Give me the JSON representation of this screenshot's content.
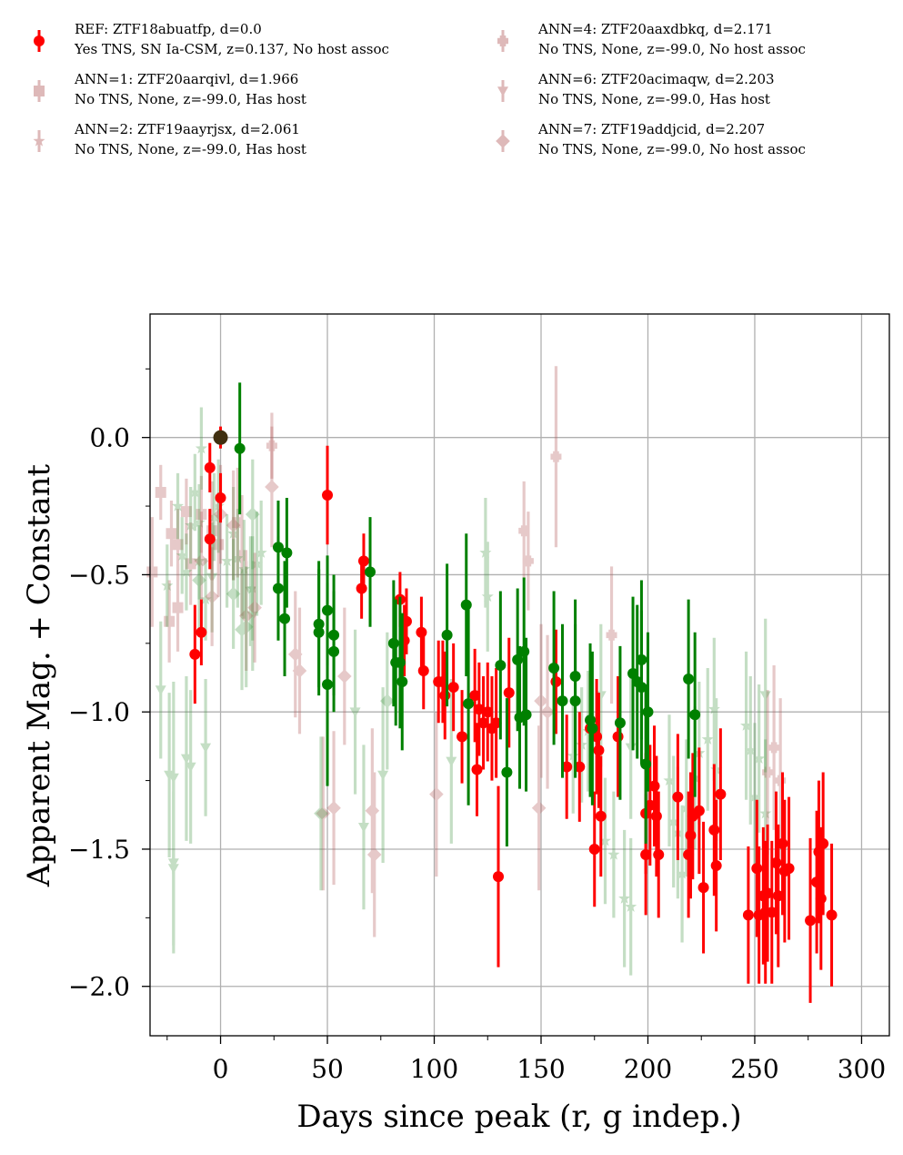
{
  "colors": {
    "r_ref": "#ff0000",
    "g_ref": "#008000",
    "r_ann": "#b35a5a",
    "g_ann": "#4a9a4a",
    "grid": "#b0b0b0",
    "peak": "#403010"
  },
  "legend": [
    {
      "marker": "circle",
      "line1": "REF: ZTF18abuatfp, d=0.0",
      "line2": "Yes TNS, SN Ia-CSM, z=0.137, No host assoc"
    },
    {
      "marker": "square",
      "line1": "ANN=1: ZTF20aarqivl, d=1.966",
      "line2": "No TNS, None, z=-99.0, Has host"
    },
    {
      "marker": "star",
      "line1": "ANN=2: ZTF19aayrjsx, d=2.061",
      "line2": "No TNS, None, z=-99.0, Has host"
    },
    {
      "marker": "plus",
      "line1": "ANN=4: ZTF20aaxdbkq, d=2.171",
      "line2": "No TNS, None, z=-99.0, No host assoc"
    },
    {
      "marker": "triangle",
      "line1": "ANN=6: ZTF20acimaqw, d=2.203",
      "line2": "No TNS, None, z=-99.0, Has host"
    },
    {
      "marker": "diamond",
      "line1": "ANN=7: ZTF19addjcid, d=2.207",
      "line2": "No TNS, None, z=-99.0, No host assoc"
    }
  ],
  "chart_data": {
    "type": "scatter",
    "xlabel": "Days since peak (r, g indep.)",
    "ylabel": "Apparent Mag. + Constant",
    "xlim": [
      -33,
      313
    ],
    "ylim": [
      -2.18,
      0.45
    ],
    "xticks": [
      0,
      50,
      100,
      150,
      200,
      250,
      300
    ],
    "xtick_labels": [
      "0",
      "50",
      "100",
      "150",
      "200",
      "250",
      "300"
    ],
    "yticks": [
      0.0,
      -0.5,
      -1.0,
      -1.5,
      -2.0
    ],
    "ytick_labels": [
      "0.0",
      "−0.5",
      "−1.0",
      "−1.5",
      "−2.0"
    ],
    "grid": true,
    "legend_position": "above plot, two columns",
    "series": [
      {
        "name": "REF r",
        "marker": "circle",
        "band": "r",
        "reference": true,
        "points": [
          [
            0,
            0.0,
            0.04
          ],
          [
            0,
            -0.22,
            0.09
          ],
          [
            -5,
            -0.11,
            0.09
          ],
          [
            -5,
            -0.37,
            0.11
          ],
          [
            -9,
            -0.71,
            0.12
          ],
          [
            -12,
            -0.79,
            0.18
          ],
          [
            50,
            -0.21,
            0.18
          ],
          [
            67,
            -0.45,
            0.1
          ],
          [
            66,
            -0.55,
            0.11
          ],
          [
            84,
            -0.59,
            0.1
          ],
          [
            87,
            -0.67,
            0.12
          ],
          [
            86,
            -0.74,
            0.13
          ],
          [
            94,
            -0.71,
            0.13
          ],
          [
            95,
            -0.85,
            0.14
          ],
          [
            102,
            -0.89,
            0.15
          ],
          [
            104,
            -0.89,
            0.15
          ],
          [
            105,
            -0.94,
            0.16
          ],
          [
            109,
            -0.91,
            0.16
          ],
          [
            113,
            -1.09,
            0.17
          ],
          [
            119,
            -0.94,
            0.17
          ],
          [
            121,
            -0.99,
            0.17
          ],
          [
            123,
            -1.04,
            0.17
          ],
          [
            125,
            -1.0,
            0.18
          ],
          [
            127,
            -1.06,
            0.19
          ],
          [
            129,
            -1.04,
            0.2
          ],
          [
            130,
            -1.6,
            0.33
          ],
          [
            120,
            -1.21,
            0.17
          ],
          [
            135,
            -0.93,
            0.2
          ],
          [
            157,
            -0.89,
            0.19
          ],
          [
            162,
            -1.2,
            0.19
          ],
          [
            168,
            -1.2,
            0.2
          ],
          [
            173,
            -1.06,
            0.2
          ],
          [
            175,
            -1.5,
            0.21
          ],
          [
            176,
            -1.09,
            0.21
          ],
          [
            177,
            -1.14,
            0.21
          ],
          [
            178,
            -1.38,
            0.22
          ],
          [
            186,
            -1.09,
            0.22
          ],
          [
            199,
            -1.37,
            0.22
          ],
          [
            199,
            -1.52,
            0.22
          ],
          [
            201,
            -1.34,
            0.22
          ],
          [
            203,
            -1.27,
            0.22
          ],
          [
            204,
            -1.38,
            0.22
          ],
          [
            205,
            -1.52,
            0.23
          ],
          [
            214,
            -1.31,
            0.23
          ],
          [
            219,
            -1.52,
            0.23
          ],
          [
            220,
            -1.45,
            0.23
          ],
          [
            221,
            -1.38,
            0.23
          ],
          [
            224,
            -1.36,
            0.23
          ],
          [
            226,
            -1.64,
            0.24
          ],
          [
            231,
            -1.43,
            0.24
          ],
          [
            232,
            -1.56,
            0.24
          ],
          [
            234,
            -1.3,
            0.24
          ],
          [
            247,
            -1.74,
            0.25
          ],
          [
            251,
            -1.57,
            0.25
          ],
          [
            252,
            -1.74,
            0.25
          ],
          [
            254,
            -1.67,
            0.25
          ],
          [
            255,
            -1.73,
            0.26
          ],
          [
            256,
            -1.66,
            0.25
          ],
          [
            258,
            -1.73,
            0.26
          ],
          [
            260,
            -1.55,
            0.26
          ],
          [
            261,
            -1.67,
            0.26
          ],
          [
            263,
            -1.48,
            0.26
          ],
          [
            264,
            -1.58,
            0.26
          ],
          [
            266,
            -1.57,
            0.26
          ],
          [
            276,
            -1.76,
            0.3
          ],
          [
            279,
            -1.62,
            0.26
          ],
          [
            280,
            -1.51,
            0.26
          ],
          [
            281,
            -1.68,
            0.26
          ],
          [
            282,
            -1.48,
            0.26
          ],
          [
            286,
            -1.74,
            0.26
          ]
        ]
      },
      {
        "name": "REF g",
        "marker": "circle",
        "band": "g",
        "reference": true,
        "points": [
          [
            9,
            -0.04,
            0.24
          ],
          [
            27,
            -0.4,
            0.17
          ],
          [
            27,
            -0.55,
            0.19
          ],
          [
            30,
            -0.66,
            0.21
          ],
          [
            31,
            -0.42,
            0.2
          ],
          [
            46,
            -0.68,
            0.23
          ],
          [
            46,
            -0.71,
            0.23
          ],
          [
            50,
            -0.63,
            0.2
          ],
          [
            50,
            -0.9,
            0.37
          ],
          [
            53,
            -0.72,
            0.22
          ],
          [
            53,
            -0.78,
            0.22
          ],
          [
            70,
            -0.49,
            0.2
          ],
          [
            81,
            -0.75,
            0.23
          ],
          [
            82,
            -0.82,
            0.23
          ],
          [
            84,
            -0.82,
            0.24
          ],
          [
            85,
            -0.89,
            0.25
          ],
          [
            106,
            -0.72,
            0.26
          ],
          [
            115,
            -0.61,
            0.26
          ],
          [
            116,
            -0.97,
            0.37
          ],
          [
            131,
            -0.83,
            0.27
          ],
          [
            134,
            -1.22,
            0.27
          ],
          [
            139,
            -0.81,
            0.26
          ],
          [
            140,
            -1.02,
            0.26
          ],
          [
            142,
            -0.78,
            0.27
          ],
          [
            143,
            -1.01,
            0.28
          ],
          [
            156,
            -0.84,
            0.28
          ],
          [
            160,
            -0.96,
            0.28
          ],
          [
            166,
            -0.87,
            0.28
          ],
          [
            166,
            -0.96,
            0.28
          ],
          [
            173,
            -1.03,
            0.28
          ],
          [
            174,
            -1.06,
            0.28
          ],
          [
            187,
            -1.04,
            0.28
          ],
          [
            193,
            -0.86,
            0.28
          ],
          [
            195,
            -0.89,
            0.28
          ],
          [
            197,
            -0.81,
            0.29
          ],
          [
            197,
            -0.91,
            0.28
          ],
          [
            199,
            -1.19,
            0.29
          ],
          [
            200,
            -1.0,
            0.29
          ],
          [
            219,
            -0.88,
            0.29
          ],
          [
            222,
            -1.01,
            0.3
          ]
        ]
      },
      {
        "name": "ANN=1",
        "marker": "square",
        "band": "r",
        "reference": false,
        "points": [
          [
            -28,
            -0.2,
            0.1
          ],
          [
            -24,
            -0.67,
            0.15
          ],
          [
            -23,
            -0.35,
            0.12
          ],
          [
            -20,
            -0.39,
            0.13
          ],
          [
            -20,
            -0.62,
            0.16
          ],
          [
            -16,
            -0.27,
            0.12
          ],
          [
            -14,
            -0.46,
            0.15
          ],
          [
            -9,
            -0.28,
            0.14
          ],
          [
            -4,
            -0.34,
            0.18
          ],
          [
            -1,
            -0.39,
            0.19
          ],
          [
            8,
            -0.31,
            0.2
          ],
          [
            10,
            -0.43,
            0.22
          ],
          [
            -32,
            -0.49,
            0.2
          ]
        ]
      },
      {
        "name": "ANN=2",
        "marker": "star",
        "band": "g",
        "reference": false,
        "points": [
          [
            -25,
            -0.54,
            0.15
          ],
          [
            -20,
            -0.25,
            0.12
          ],
          [
            -18,
            -0.43,
            0.14
          ],
          [
            -16,
            -0.49,
            0.14
          ],
          [
            -14,
            -0.32,
            0.14
          ],
          [
            -12,
            -0.2,
            0.14
          ],
          [
            -10,
            -0.31,
            0.14
          ],
          [
            -10,
            -0.45,
            0.14
          ],
          [
            -9,
            -0.04,
            0.15
          ],
          [
            -7,
            -0.59,
            0.15
          ],
          [
            -3,
            -0.29,
            0.16
          ],
          [
            -1,
            -0.25,
            0.17
          ],
          [
            3,
            -0.45,
            0.17
          ],
          [
            6,
            -0.35,
            0.17
          ],
          [
            8,
            -0.44,
            0.18
          ],
          [
            11,
            -0.48,
            0.18
          ],
          [
            15,
            -0.55,
            0.19
          ],
          [
            17,
            -0.46,
            0.19
          ],
          [
            19,
            -0.42,
            0.19
          ],
          [
            124,
            -0.42,
            0.2
          ],
          [
            125,
            -0.58,
            0.2
          ],
          [
            165,
            -1.16,
            0.21
          ],
          [
            169,
            -1.12,
            0.21
          ],
          [
            172,
            -1.07,
            0.22
          ],
          [
            180,
            -1.47,
            0.23
          ],
          [
            184,
            -1.52,
            0.23
          ],
          [
            189,
            -1.68,
            0.25
          ],
          [
            192,
            -1.71,
            0.25
          ],
          [
            210,
            -1.25,
            0.24
          ],
          [
            212,
            -1.4,
            0.24
          ],
          [
            214,
            -1.44,
            0.24
          ],
          [
            216,
            -1.59,
            0.25
          ],
          [
            218,
            -1.35,
            0.25
          ],
          [
            222,
            -1.24,
            0.26
          ],
          [
            224,
            -1.15,
            0.26
          ],
          [
            228,
            -1.1,
            0.26
          ],
          [
            231,
            -0.99,
            0.26
          ],
          [
            232,
            -1.21,
            0.26
          ],
          [
            246,
            -1.05,
            0.27
          ],
          [
            248,
            -1.14,
            0.27
          ],
          [
            250,
            -1.31,
            0.27
          ],
          [
            252,
            -1.17,
            0.27
          ],
          [
            255,
            -1.37,
            0.27
          ]
        ]
      },
      {
        "name": "ANN=4",
        "marker": "plus",
        "band": "r",
        "reference": false,
        "points": [
          [
            24,
            -0.03,
            0.12
          ],
          [
            142,
            -0.34,
            0.18
          ],
          [
            144,
            -0.45,
            0.18
          ],
          [
            157,
            -0.07,
            0.33
          ],
          [
            183,
            -0.72,
            0.25
          ],
          [
            256,
            -1.22,
            0.3
          ],
          [
            259,
            -1.13,
            0.3
          ],
          [
            262,
            -1.25,
            0.3
          ]
        ]
      },
      {
        "name": "ANN=6",
        "marker": "triangle",
        "band": "g",
        "reference": false,
        "points": [
          [
            -28,
            -0.92,
            0.25
          ],
          [
            -24,
            -1.23,
            0.3
          ],
          [
            -22,
            -1.24,
            0.35
          ],
          [
            -22,
            -1.55,
            0.33
          ],
          [
            -22,
            -1.57,
            0.28
          ],
          [
            -16,
            -1.17,
            0.3
          ],
          [
            -14,
            -1.2,
            0.28
          ],
          [
            -7,
            -1.13,
            0.25
          ],
          [
            -4,
            -0.51,
            0.2
          ],
          [
            14,
            -0.56,
            0.2
          ],
          [
            15,
            -0.65,
            0.2
          ],
          [
            63,
            -1.0,
            0.3
          ],
          [
            67,
            -1.42,
            0.3
          ],
          [
            76,
            -1.23,
            0.32
          ],
          [
            108,
            -1.18,
            0.3
          ],
          [
            178,
            -0.94,
            0.26
          ],
          [
            192,
            -1.13,
            0.26
          ],
          [
            255,
            -0.94,
            0.28
          ]
        ]
      },
      {
        "name": "ANN=7",
        "marker": "diamond",
        "band": "r",
        "reference": false,
        "points": [
          [
            -9,
            -0.45,
            0.18
          ],
          [
            -4,
            -0.58,
            0.18
          ],
          [
            0,
            -0.28,
            0.18
          ],
          [
            6,
            -0.32,
            0.2
          ],
          [
            12,
            -0.65,
            0.2
          ],
          [
            16,
            -0.62,
            0.2
          ],
          [
            24,
            -0.18,
            0.22
          ],
          [
            35,
            -0.79,
            0.23
          ],
          [
            37,
            -0.85,
            0.23
          ],
          [
            48,
            -1.37,
            0.28
          ],
          [
            53,
            -1.35,
            0.28
          ],
          [
            58,
            -0.87,
            0.25
          ],
          [
            71,
            -1.36,
            0.3
          ],
          [
            72,
            -1.52,
            0.3
          ],
          [
            101,
            -1.3,
            0.3
          ],
          [
            149,
            -1.35,
            0.3
          ],
          [
            150,
            -0.96,
            0.28
          ],
          [
            153,
            -1.0,
            0.28
          ]
        ]
      },
      {
        "name": "ANN=7 g",
        "marker": "diamond",
        "band": "g",
        "reference": false,
        "points": [
          [
            10,
            -0.7,
            0.22
          ],
          [
            12,
            -0.69,
            0.22
          ],
          [
            15,
            -0.28,
            0.2
          ],
          [
            6,
            -0.57,
            0.2
          ],
          [
            -10,
            -0.52,
            0.2
          ],
          [
            78,
            -0.96,
            0.25
          ],
          [
            47,
            -1.37,
            0.28
          ]
        ]
      }
    ]
  }
}
